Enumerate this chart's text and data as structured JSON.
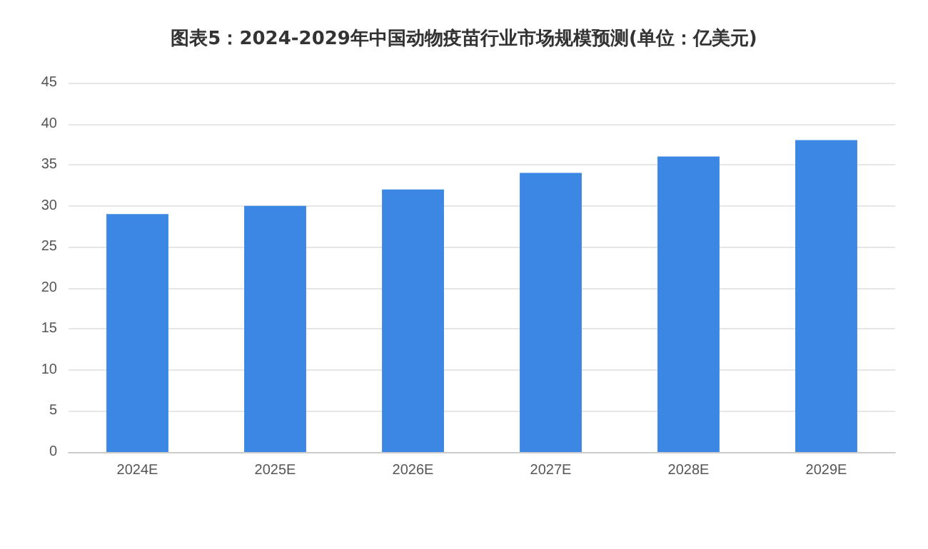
{
  "chart_data": {
    "type": "bar",
    "title": "图表5：2024-2029年中国动物疫苗行业市场规模预测(单位：亿美元)",
    "categories": [
      "2024E",
      "2025E",
      "2026E",
      "2027E",
      "2028E",
      "2029E"
    ],
    "values": [
      29,
      30,
      32,
      34,
      36,
      38
    ],
    "color": "#3b87e3",
    "ylim": [
      0,
      45
    ],
    "yticks": [
      0,
      5,
      10,
      15,
      20,
      25,
      30,
      35,
      40,
      45
    ],
    "grid": "y"
  }
}
